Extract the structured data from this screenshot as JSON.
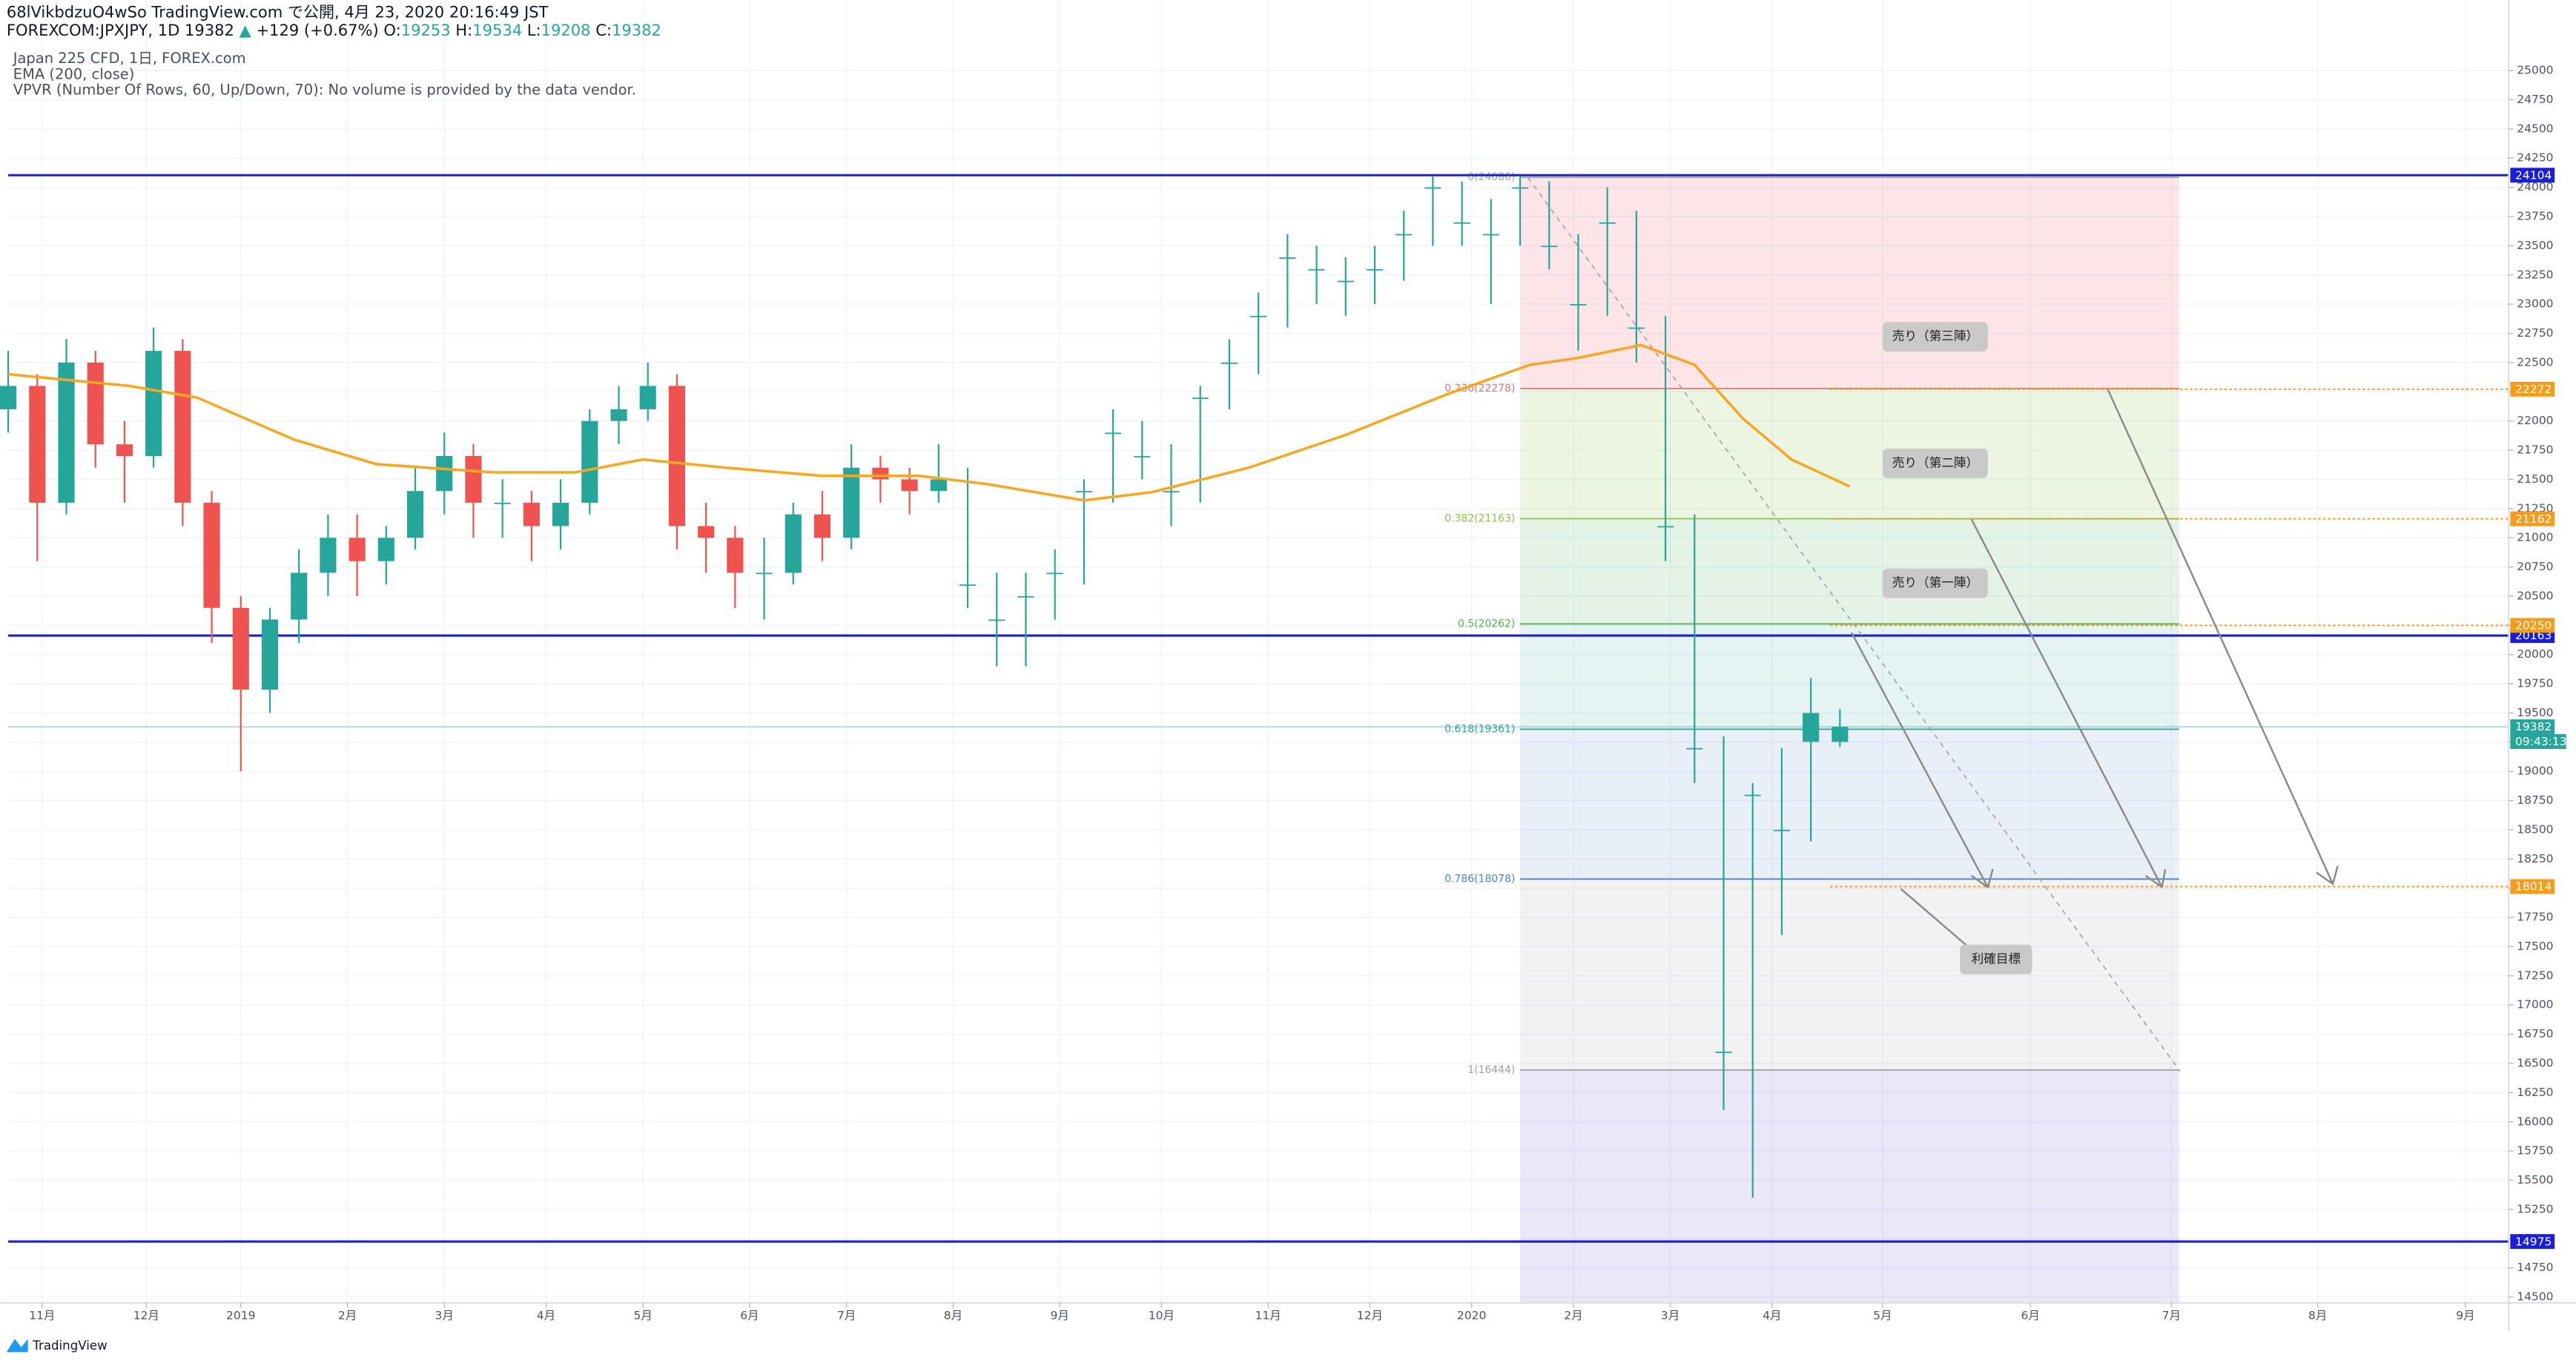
{
  "header": {
    "title": "68lVikbdzuO4wSo TradingView.com で公開, 4月 23, 2020 20:16:49 JST",
    "symbol": "FOREXCOM:JPXJPY, 1D",
    "price": 19382,
    "arrow": "▲",
    "change": "+129 (+0.67%)",
    "ohlc": [
      {
        "label": "O:",
        "value": 19253
      },
      {
        "label": "H:",
        "value": 19534
      },
      {
        "label": "L:",
        "value": 19208
      },
      {
        "label": "C:",
        "value": 19382
      }
    ],
    "legend": [
      "Japan 225 CFD, 1日, FOREX.com",
      "EMA (200, close)",
      "VPVR (Number Of Rows, 60, Up/Down, 70): No volume is provided by the data vendor."
    ],
    "brand": "TradingView"
  },
  "chart_data": {
    "type": "candlestick",
    "up_color": "#26a69a",
    "down_color": "#ef5350",
    "grid": true,
    "x": [
      0,
      6,
      12,
      18,
      24,
      30,
      36,
      42,
      48,
      54,
      60,
      66,
      72,
      78,
      84,
      90,
      96,
      102,
      108,
      114,
      120,
      126,
      132,
      138,
      144,
      150,
      156,
      162,
      168,
      174,
      180,
      186,
      192,
      198,
      204,
      210,
      216,
      222,
      228,
      234,
      240,
      246,
      252,
      258,
      264,
      270,
      276,
      282,
      288,
      294,
      300,
      306,
      312,
      318,
      324,
      330,
      336,
      342,
      348,
      354,
      360,
      366,
      372,
      378
    ],
    "open": [
      22100,
      22300,
      21300,
      22500,
      21800,
      21700,
      22600,
      21300,
      20400,
      19700,
      20300,
      20700,
      21000,
      20800,
      21000,
      21400,
      21700,
      21300,
      21300,
      21100,
      21300,
      22000,
      22100,
      22300,
      21100,
      21000,
      20700,
      20700,
      21200,
      21000,
      21600,
      21500,
      21400,
      20600,
      20300,
      20500,
      20700,
      21400,
      21900,
      21700,
      21400,
      22200,
      22500,
      22900,
      23400,
      23300,
      23200,
      23300,
      23600,
      24000,
      23700,
      23600,
      24000,
      23500,
      23000,
      23700,
      22800,
      21100,
      19200,
      16600,
      18800,
      18500,
      19253,
      19253
    ],
    "high": [
      22600,
      22400,
      22700,
      22600,
      22000,
      22800,
      22700,
      21400,
      20500,
      20400,
      20900,
      21200,
      21200,
      21100,
      21600,
      21900,
      21800,
      21500,
      21400,
      21500,
      22100,
      22300,
      22500,
      22400,
      21300,
      21100,
      21000,
      21300,
      21400,
      21800,
      21700,
      21600,
      21800,
      21600,
      20700,
      20700,
      20900,
      21500,
      22100,
      22000,
      21800,
      22300,
      22700,
      23100,
      23600,
      23500,
      23400,
      23500,
      23800,
      24100,
      24050,
      23900,
      24100,
      24050,
      23600,
      24000,
      23800,
      22900,
      21200,
      19300,
      18900,
      19200,
      19800,
      19534
    ],
    "low": [
      21900,
      20800,
      21200,
      21600,
      21300,
      21600,
      21100,
      20100,
      19000,
      19500,
      20100,
      20500,
      20500,
      20600,
      20900,
      21200,
      21000,
      21000,
      20800,
      20900,
      21200,
      21800,
      22000,
      20900,
      20700,
      20400,
      20300,
      20600,
      20800,
      20900,
      21300,
      21200,
      21300,
      20400,
      19900,
      19900,
      20300,
      20600,
      21300,
      21500,
      21100,
      21300,
      22100,
      22400,
      22800,
      23000,
      22900,
      23000,
      23200,
      23500,
      23500,
      23000,
      23500,
      23300,
      22600,
      22900,
      22500,
      20800,
      18900,
      16100,
      15350,
      17600,
      18400,
      19208
    ],
    "close": [
      22300,
      21300,
      22500,
      21800,
      21700,
      22600,
      21300,
      20400,
      19700,
      20300,
      20700,
      21000,
      20800,
      21000,
      21400,
      21700,
      21300,
      21300,
      21100,
      21300,
      22000,
      22100,
      22300,
      21100,
      21000,
      20700,
      20700,
      21200,
      21000,
      21600,
      21500,
      21400,
      21500,
      20600,
      20300,
      20500,
      20700,
      21400,
      21900,
      21700,
      21400,
      22200,
      22500,
      22900,
      23400,
      23300,
      23200,
      23300,
      23600,
      24000,
      23700,
      23600,
      24000,
      23500,
      23000,
      23700,
      22800,
      21100,
      19200,
      16600,
      18800,
      18500,
      19500,
      19382
    ],
    "ema": {
      "color": "#f7a823",
      "x": [
        0,
        25,
        39,
        59,
        76,
        100,
        117,
        131,
        148,
        168,
        188,
        202,
        222,
        236,
        256,
        276,
        297,
        314,
        324,
        337,
        348,
        358,
        368,
        380
      ],
      "values": [
        22400,
        22300,
        22200,
        21840,
        21630,
        21560,
        21560,
        21670,
        21600,
        21530,
        21530,
        21460,
        21320,
        21390,
        21600,
        21880,
        22230,
        22480,
        22540,
        22650,
        22480,
        22020,
        21670,
        21440
      ]
    },
    "xlim": [
      0,
      516
    ],
    "ylim": [
      14450,
      25210
    ],
    "xticks": [
      {
        "value": 7,
        "label": "11月"
      },
      {
        "value": 28.5,
        "label": "12月"
      },
      {
        "value": 48,
        "label": "2019"
      },
      {
        "value": 70,
        "label": "2月"
      },
      {
        "value": 90,
        "label": "3月"
      },
      {
        "value": 111,
        "label": "4月"
      },
      {
        "value": 131,
        "label": "5月"
      },
      {
        "value": 153,
        "label": "6月"
      },
      {
        "value": 173,
        "label": "7月"
      },
      {
        "value": 195,
        "label": "8月"
      },
      {
        "value": 217,
        "label": "9月"
      },
      {
        "value": 238,
        "label": "10月"
      },
      {
        "value": 260,
        "label": "11月"
      },
      {
        "value": 281,
        "label": "12月"
      },
      {
        "value": 302,
        "label": "2020"
      },
      {
        "value": 323,
        "label": "2月"
      },
      {
        "value": 343,
        "label": "3月"
      },
      {
        "value": 364,
        "label": "4月"
      },
      {
        "value": 386.8,
        "label": "5月"
      },
      {
        "value": 417.3,
        "label": "6月"
      },
      {
        "value": 446.4,
        "label": "7月"
      },
      {
        "value": 476.6,
        "label": "8月"
      },
      {
        "value": 507.1,
        "label": "9月"
      }
    ],
    "yticks": [
      14500,
      14750,
      15000,
      15250,
      15500,
      15750,
      16000,
      16250,
      16500,
      16750,
      17000,
      17250,
      17500,
      17750,
      18000,
      18250,
      18500,
      18750,
      19000,
      19250,
      19500,
      19750,
      20000,
      20250,
      20500,
      20750,
      21000,
      21250,
      21500,
      21750,
      22000,
      22250,
      22500,
      22750,
      23000,
      23250,
      23500,
      23750,
      24000,
      24250,
      24500,
      24750,
      25000
    ],
    "fib": {
      "x": [
        312,
        448
      ],
      "prices": [
        24086,
        22278,
        21163,
        20262,
        19361,
        18078,
        16444
      ],
      "labels": [
        "0(24086)",
        "0.236(22278)",
        "0.382(21163)",
        "0.5(20262)",
        "0.618(19361)",
        "0.786(18078)",
        "1(16444)"
      ],
      "colors": [
        "#9e9e9e",
        "#e57373",
        "#8bc34a",
        "#4caf50",
        "#26a69a",
        "#4a84c4",
        "#9e9e9e"
      ],
      "fills": [
        "rgba(242,54,69,0.13)",
        "rgba(139,195,74,0.16)",
        "rgba(76,175,80,0.15)",
        "rgba(38,166,154,0.12)",
        "rgba(74,132,196,0.13)",
        "rgba(158,158,158,0.13)",
        "rgba(103,88,205,0.14)"
      ]
    },
    "price_lines": [
      {
        "value": 24104,
        "color": "#1a1ed8",
        "style": "solid"
      },
      {
        "value": 20163,
        "color": "#1a1ed8",
        "style": "solid"
      },
      {
        "value": 14975,
        "color": "#1a1ed8",
        "style": "solid"
      },
      {
        "value": 19382,
        "color": "#26a69a",
        "style": "thin"
      },
      {
        "value": 22272,
        "color": "#f59c1a",
        "style": "dotted",
        "start": 376
      },
      {
        "value": 21162,
        "color": "#f59c1a",
        "style": "dotted",
        "start": 376
      },
      {
        "value": 20250,
        "color": "#f59c1a",
        "style": "dotted",
        "start": 376
      },
      {
        "value": 18014,
        "color": "#f59c1a",
        "style": "dotted",
        "start": 376
      }
    ],
    "countdown": "09:43:13",
    "annotations": [
      "売り（第三陣）",
      "売り（第二陣）",
      "売り（第一陣）",
      "利確目標"
    ]
  }
}
